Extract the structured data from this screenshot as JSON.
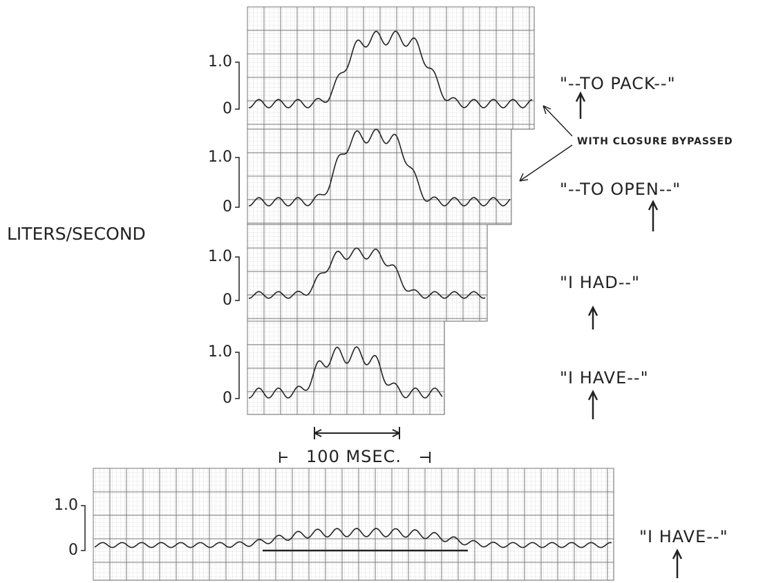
{
  "y_axis_label": "LITERS/SECOND",
  "annotation": "WITH CLOSURE BYPASSED",
  "scale_label": "100 MSEC.",
  "panels": [
    {
      "tick_top": "1.0",
      "tick_bottom": "0",
      "phrase": "\"--TO PACK--\""
    },
    {
      "tick_top": "1.0",
      "tick_bottom": "0",
      "phrase": "\"--TO OPEN--\""
    },
    {
      "tick_top": "1.0",
      "tick_bottom": "0",
      "phrase": "\"I HAD--\""
    },
    {
      "tick_top": "1.0",
      "tick_bottom": "0",
      "phrase": "\"I HAVE--\""
    },
    {
      "tick_top": "1.0",
      "tick_bottom": "0",
      "phrase": "\"I HAVE--\""
    }
  ]
}
